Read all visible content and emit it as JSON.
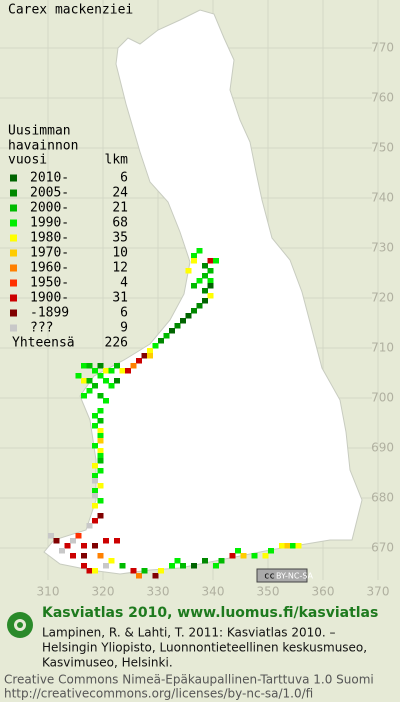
{
  "map": {
    "title": "Carex mackenziei",
    "legend_header": [
      "Uusimman",
      "havainnon",
      "vuosi"
    ],
    "count_header": "lkm",
    "legend": [
      {
        "label": "2010-",
        "count": 6,
        "color": "#006400"
      },
      {
        "label": "2005-",
        "count": 24,
        "color": "#008800"
      },
      {
        "label": "2000-",
        "count": 21,
        "color": "#00bb00"
      },
      {
        "label": "1990-",
        "count": 68,
        "color": "#00ee00"
      },
      {
        "label": "1980-",
        "count": 35,
        "color": "#ffff00"
      },
      {
        "label": "1970-",
        "count": 10,
        "color": "#ffcc00"
      },
      {
        "label": "1960-",
        "count": 12,
        "color": "#ff8000"
      },
      {
        "label": "1950-",
        "count": 4,
        "color": "#ff3000"
      },
      {
        "label": "1900-",
        "count": 31,
        "color": "#cc0000"
      },
      {
        "label": "-1899",
        "count": 6,
        "color": "#800000"
      },
      {
        "label": "???",
        "count": 9,
        "color": "#c8c8c8"
      }
    ],
    "total_label": "Yhteensä",
    "total": 226,
    "xlim": [
      310,
      370
    ],
    "ylim": [
      670,
      770
    ],
    "xticks": [
      310,
      320,
      330,
      340,
      350,
      360,
      370
    ],
    "yticks": [
      770,
      760,
      750,
      740,
      730,
      720,
      710,
      700,
      690,
      680,
      670
    ],
    "squares": [
      [
        336,
        728,
        3
      ],
      [
        336,
        727,
        4
      ],
      [
        337,
        729,
        3
      ],
      [
        338,
        726,
        1
      ],
      [
        339,
        725,
        2
      ],
      [
        338,
        724,
        2
      ],
      [
        339,
        723,
        3
      ],
      [
        339,
        722,
        0
      ],
      [
        338,
        721,
        1
      ],
      [
        339,
        720,
        4
      ],
      [
        337,
        723,
        3
      ],
      [
        336,
        722,
        2
      ],
      [
        335,
        725,
        4
      ],
      [
        339,
        727,
        8
      ],
      [
        338,
        719,
        0
      ],
      [
        340,
        727,
        3
      ],
      [
        337,
        718,
        1
      ],
      [
        336,
        717,
        1
      ],
      [
        335,
        716,
        0
      ],
      [
        334,
        715,
        0
      ],
      [
        333,
        714,
        1
      ],
      [
        332,
        713,
        0
      ],
      [
        331,
        712,
        2
      ],
      [
        330,
        711,
        1
      ],
      [
        329,
        710,
        3
      ],
      [
        328,
        709,
        4
      ],
      [
        327,
        708,
        9
      ],
      [
        326,
        707,
        8
      ],
      [
        328,
        708,
        5
      ],
      [
        316,
        706,
        3
      ],
      [
        317,
        706,
        2
      ],
      [
        318,
        705,
        3
      ],
      [
        319,
        706,
        1
      ],
      [
        320,
        705,
        4
      ],
      [
        321,
        705,
        3
      ],
      [
        322,
        706,
        2
      ],
      [
        323,
        705,
        4
      ],
      [
        324,
        705,
        8
      ],
      [
        325,
        706,
        6
      ],
      [
        315,
        704,
        3
      ],
      [
        316,
        703,
        4
      ],
      [
        317,
        703,
        2
      ],
      [
        319,
        704,
        3
      ],
      [
        320,
        703,
        3
      ],
      [
        321,
        702,
        3
      ],
      [
        322,
        703,
        1
      ],
      [
        318,
        702,
        2
      ],
      [
        317,
        701,
        3
      ],
      [
        316,
        700,
        3
      ],
      [
        319,
        700,
        2
      ],
      [
        320,
        699,
        3
      ],
      [
        319,
        697,
        3
      ],
      [
        318,
        696,
        3
      ],
      [
        319,
        695,
        2
      ],
      [
        318,
        694,
        3
      ],
      [
        319,
        693,
        4
      ],
      [
        319,
        692,
        3
      ],
      [
        319,
        691,
        5
      ],
      [
        318,
        690,
        3
      ],
      [
        319,
        689,
        4
      ],
      [
        319,
        688,
        3
      ],
      [
        319,
        687,
        2
      ],
      [
        318,
        686,
        4
      ],
      [
        319,
        685,
        3
      ],
      [
        318,
        684,
        3
      ],
      [
        318,
        683,
        10
      ],
      [
        319,
        682,
        4
      ],
      [
        318,
        681,
        3
      ],
      [
        318,
        680,
        10
      ],
      [
        319,
        679,
        3
      ],
      [
        318,
        678,
        4
      ],
      [
        319,
        676,
        9
      ],
      [
        318,
        675,
        8
      ],
      [
        317,
        674,
        10
      ],
      [
        310,
        672,
        10
      ],
      [
        311,
        671,
        9
      ],
      [
        313,
        670,
        8
      ],
      [
        314,
        671,
        10
      ],
      [
        315,
        672,
        7
      ],
      [
        316,
        670,
        8
      ],
      [
        312,
        669,
        10
      ],
      [
        314,
        668,
        8
      ],
      [
        316,
        668,
        9
      ],
      [
        318,
        670,
        9
      ],
      [
        320,
        671,
        8
      ],
      [
        322,
        671,
        8
      ],
      [
        319,
        668,
        6
      ],
      [
        321,
        667,
        4
      ],
      [
        316,
        666,
        8
      ],
      [
        317,
        665,
        8
      ],
      [
        318,
        665,
        4
      ],
      [
        320,
        666,
        10
      ],
      [
        323,
        666,
        2
      ],
      [
        325,
        665,
        8
      ],
      [
        326,
        664,
        6
      ],
      [
        327,
        665,
        2
      ],
      [
        329,
        664,
        9
      ],
      [
        330,
        665,
        4
      ],
      [
        332,
        666,
        3
      ],
      [
        333,
        667,
        3
      ],
      [
        334,
        666,
        2
      ],
      [
        336,
        666,
        0
      ],
      [
        338,
        667,
        1
      ],
      [
        340,
        666,
        3
      ],
      [
        341,
        667,
        2
      ],
      [
        343,
        668,
        8
      ],
      [
        344,
        669,
        3
      ],
      [
        345,
        668,
        5
      ],
      [
        347,
        668,
        3
      ],
      [
        349,
        668,
        4
      ],
      [
        350,
        669,
        3
      ],
      [
        352,
        670,
        4
      ],
      [
        353,
        670,
        5
      ],
      [
        354,
        670,
        3
      ],
      [
        355,
        670,
        4
      ]
    ],
    "badge": [
      "cc",
      "BY-NC-SA"
    ],
    "footer": {
      "site": "Kasviatlas 2010, www.luomus.fi/kasviatlas",
      "citation": [
        "Lampinen, R. & Lahti, T. 2011: Kasviatlas 2010. –",
        "Helsingin Yliopisto, Luonnontieteellinen keskusmuseo,",
        "Kasvimuseo, Helsinki."
      ],
      "license": [
        "Creative Commons Nimeä-Epäkaupallinen-Tarttuva 1.0 Suomi",
        "http://creativecommons.org/licenses/by-nc-sa/1.0/fi"
      ]
    }
  }
}
